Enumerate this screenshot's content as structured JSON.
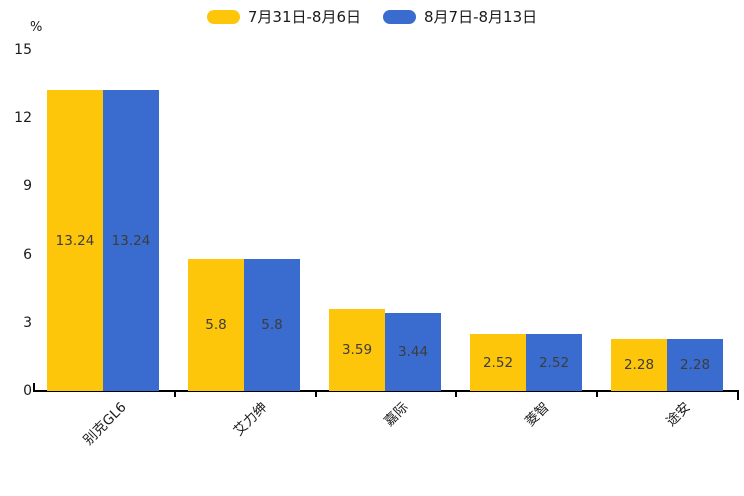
{
  "chart_data": {
    "type": "bar",
    "unit_label": "%",
    "categories": [
      "别克GL6",
      "艾力绅",
      "嘉际",
      "菱智",
      "途安"
    ],
    "series": [
      {
        "name": "7月31日-8月6日",
        "color": "#FDC60B",
        "values": [
          13.24,
          5.8,
          3.59,
          2.52,
          2.28
        ]
      },
      {
        "name": "8月7日-8月13日",
        "color": "#3A6BCE",
        "values": [
          13.24,
          5.8,
          3.44,
          2.52,
          2.28
        ]
      }
    ],
    "yticks": [
      0,
      3,
      6,
      9,
      12,
      15
    ],
    "ylim": [
      0,
      15
    ],
    "legend_position": "top",
    "grid": false,
    "value_labels_shown": true,
    "axis_color": "#000000",
    "value_label_color": "#3d3d3d"
  }
}
